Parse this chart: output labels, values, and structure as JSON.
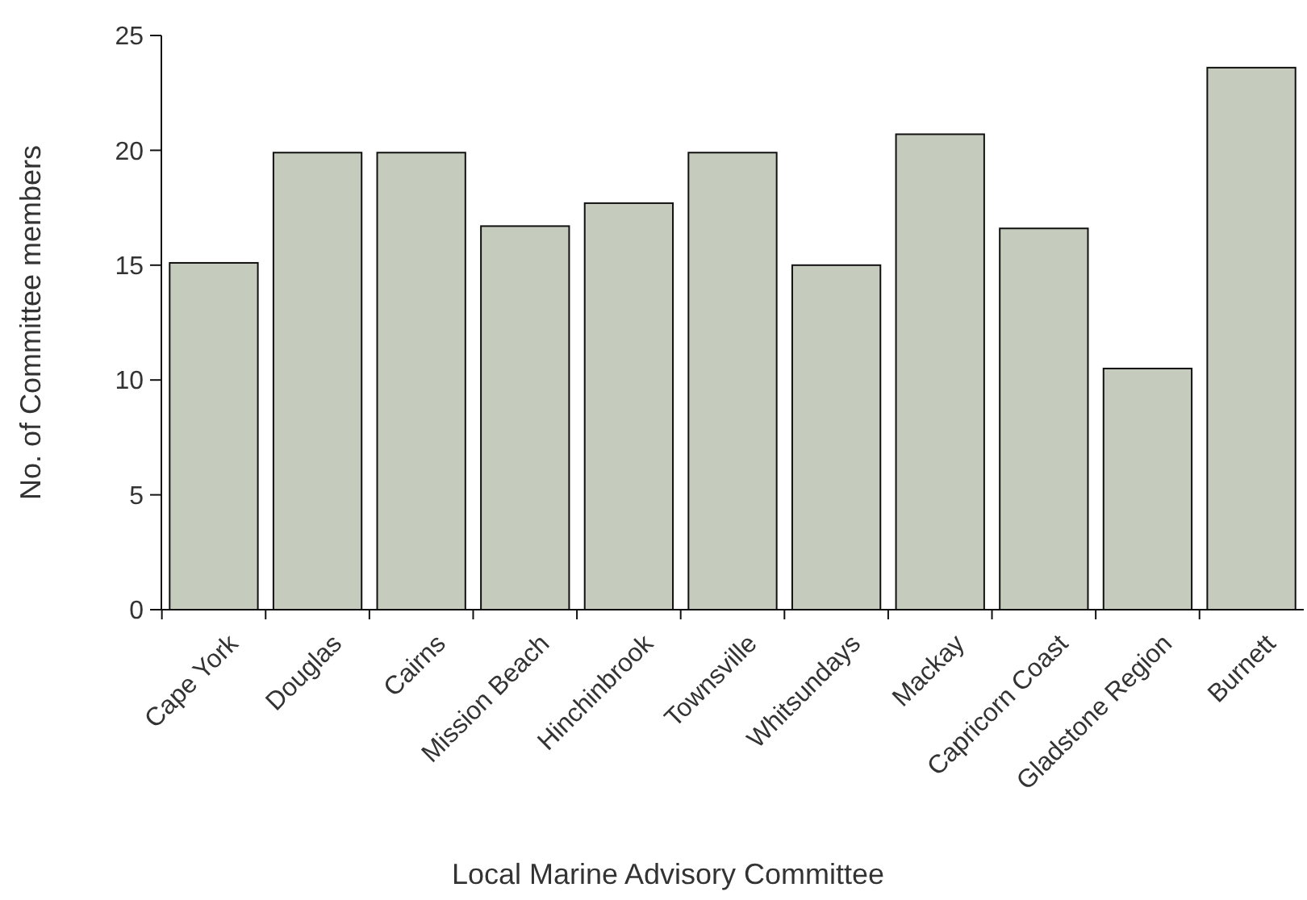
{
  "chart_data": {
    "type": "bar",
    "xlabel": "Local Marine Advisory Committee",
    "ylabel": "No. of Committee members",
    "categories": [
      "Cape York",
      "Douglas",
      "Cairns",
      "Mission Beach",
      "Hinchinbrook",
      "Townsville",
      "Whitsundays",
      "Mackay",
      "Capricorn Coast",
      "Gladstone Region",
      "Burnett"
    ],
    "values": [
      15.1,
      19.9,
      19.9,
      16.7,
      17.7,
      19.9,
      15,
      20.7,
      16.6,
      10.5,
      23.6
    ],
    "color": "#c5ccbd",
    "ylim": [
      0,
      25
    ],
    "yticks": [
      0,
      5,
      10,
      15,
      20,
      25
    ],
    "grid": false
  }
}
